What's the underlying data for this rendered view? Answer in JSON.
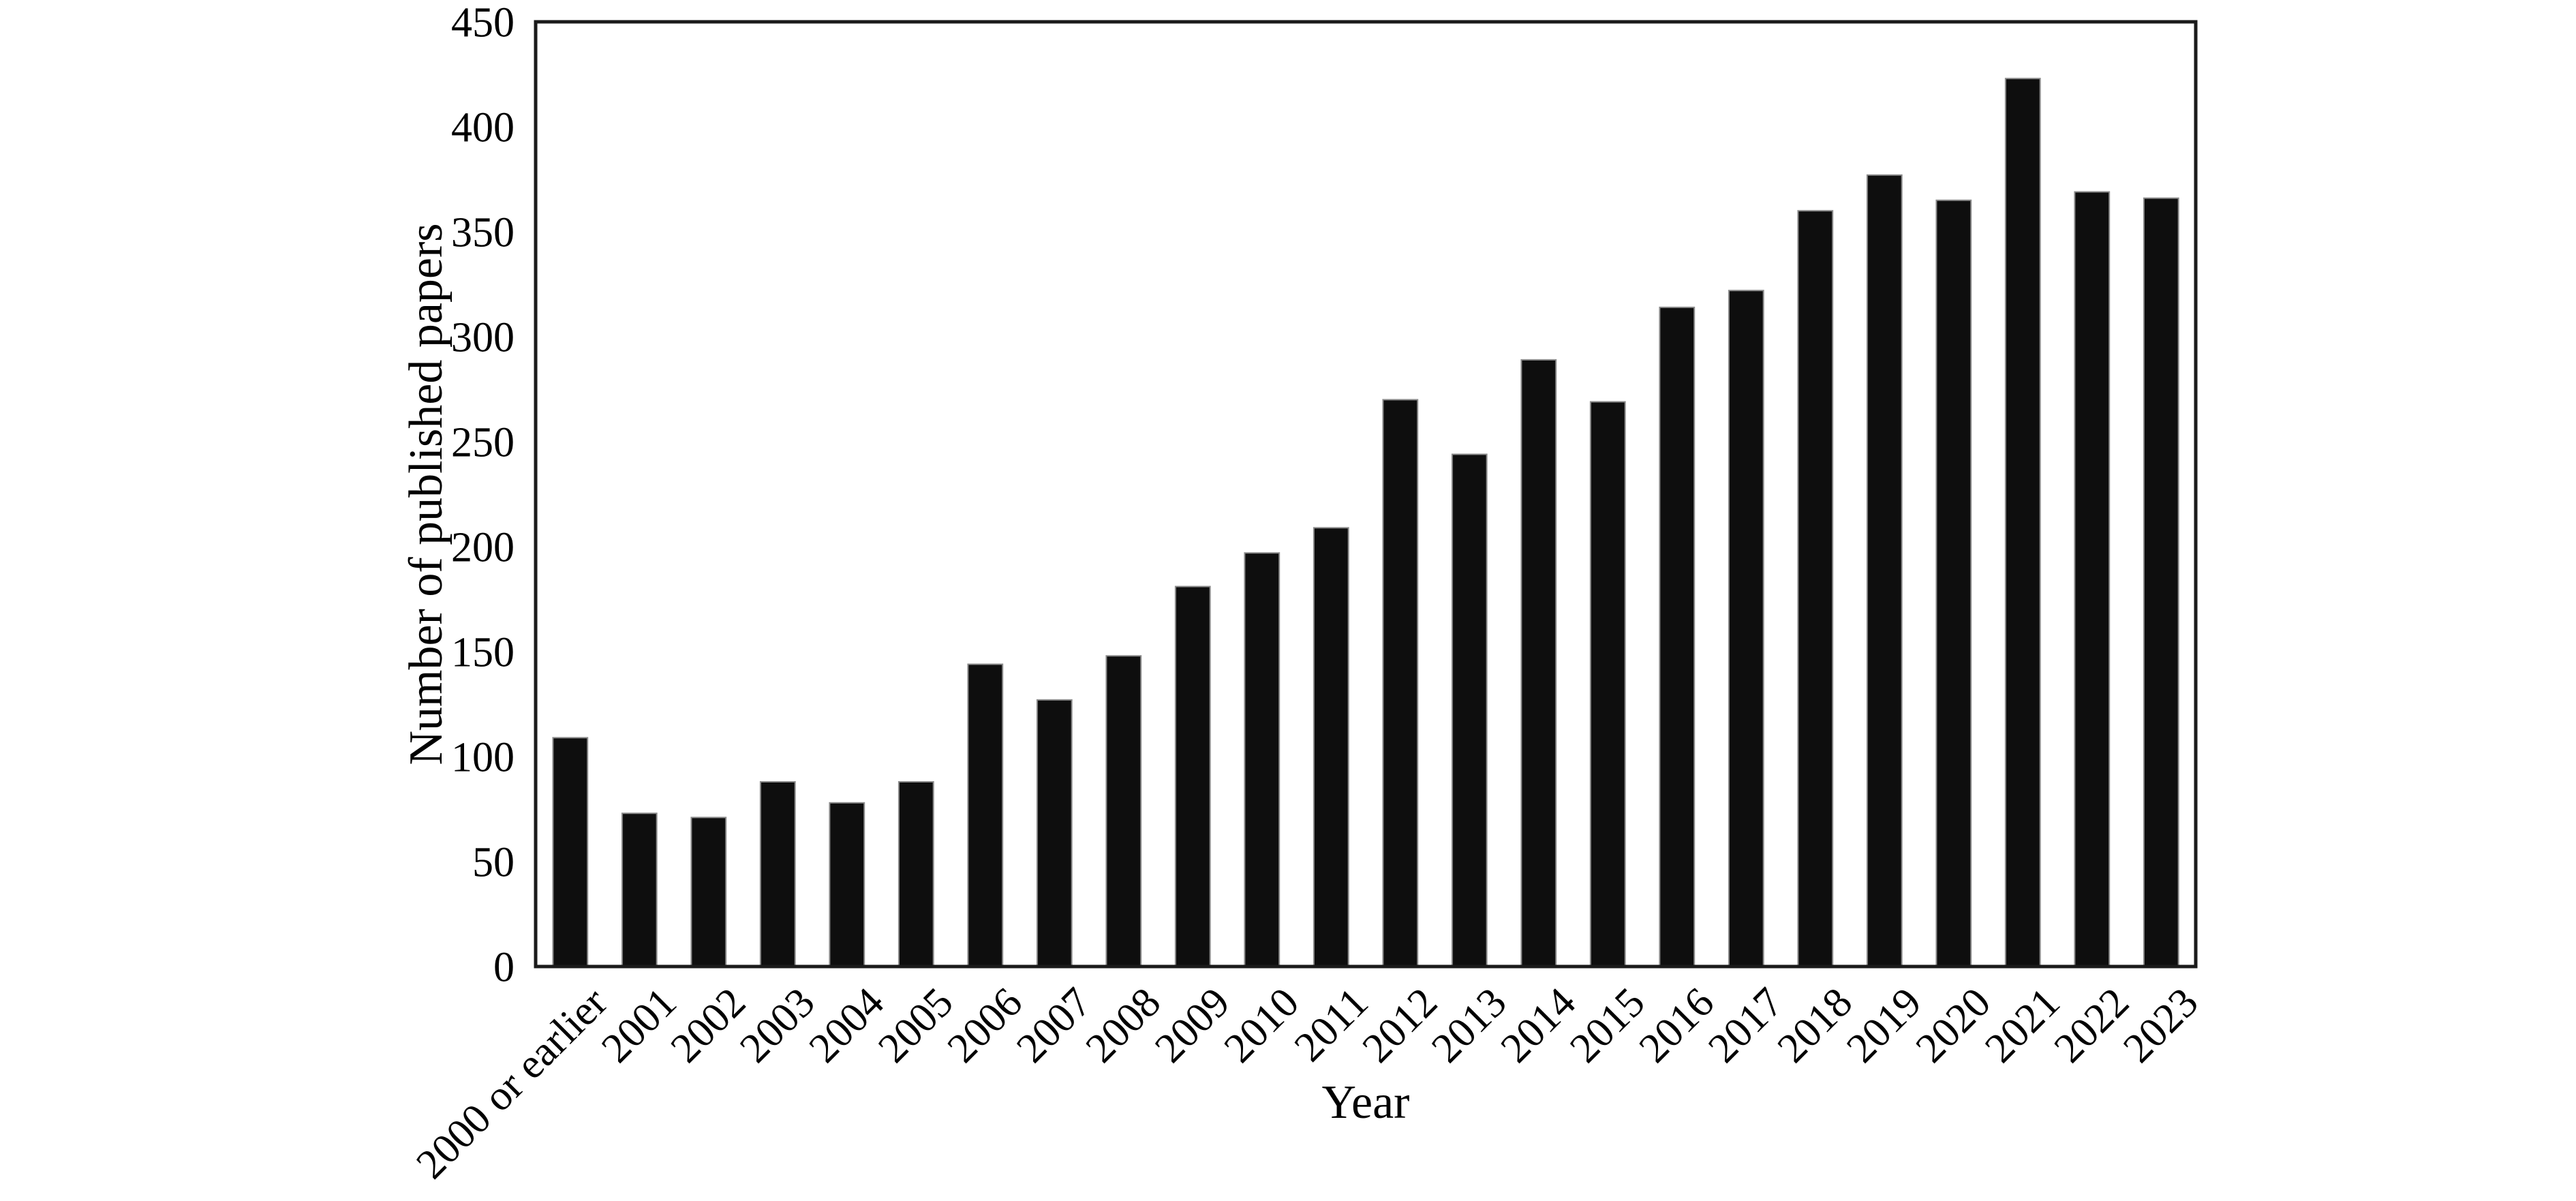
{
  "page": {
    "background": "#ffffff"
  },
  "chart_data": {
    "type": "bar",
    "title": "",
    "xlabel": "Year",
    "ylabel": "Number of published papers",
    "categories": [
      "2000 or earlier",
      "2001",
      "2002",
      "2003",
      "2004",
      "2005",
      "2006",
      "2007",
      "2008",
      "2009",
      "2010",
      "2011",
      "2012",
      "2013",
      "2014",
      "2015",
      "2016",
      "2017",
      "2018",
      "2019",
      "2020",
      "2021",
      "2022",
      "2023"
    ],
    "values": [
      109,
      73,
      71,
      88,
      78,
      88,
      144,
      127,
      148,
      181,
      197,
      209,
      270,
      244,
      289,
      269,
      314,
      322,
      360,
      377,
      365,
      423,
      369,
      366
    ],
    "ylim": [
      0,
      450
    ],
    "yticks": [
      0,
      50,
      100,
      150,
      200,
      250,
      300,
      350,
      400,
      450
    ],
    "x_tick_rotation_deg": 45,
    "grid": false,
    "legend": null,
    "bar_color": "#0e0e0e",
    "bar_edge_color": "#8c8c8c",
    "axis_color": "#1a1a1a",
    "text_color": "#000000"
  }
}
